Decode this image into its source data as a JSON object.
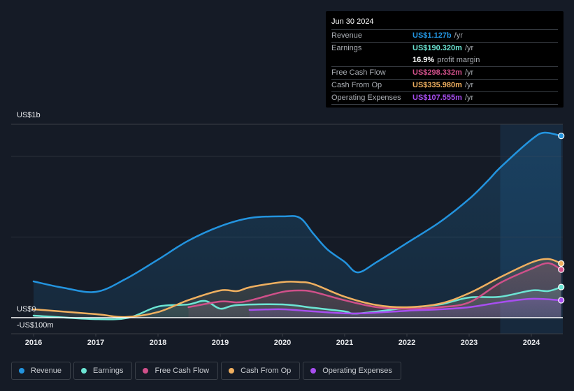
{
  "tooltip": {
    "date": "Jun 30 2024",
    "rows": [
      {
        "label": "Revenue",
        "value": "US$1.127b",
        "unit": "/yr",
        "color": "#2394df"
      },
      {
        "label": "Earnings",
        "value": "US$190.320m",
        "unit": "/yr",
        "color": "#6ce5d4"
      },
      {
        "label": "",
        "value": "16.9%",
        "unit": "profit margin"
      },
      {
        "label": "Free Cash Flow",
        "value": "US$298.332m",
        "unit": "/yr",
        "color": "#d0508a"
      },
      {
        "label": "Cash From Op",
        "value": "US$335.980m",
        "unit": "/yr",
        "color": "#f0b060"
      },
      {
        "label": "Operating Expenses",
        "value": "US$107.555m",
        "unit": "/yr",
        "color": "#a84ef0"
      }
    ]
  },
  "legend": [
    {
      "label": "Revenue",
      "color": "#2394df"
    },
    {
      "label": "Earnings",
      "color": "#6ce5d4"
    },
    {
      "label": "Free Cash Flow",
      "color": "#d0508a"
    },
    {
      "label": "Cash From Op",
      "color": "#f0b060"
    },
    {
      "label": "Operating Expenses",
      "color": "#a84ef0"
    }
  ],
  "chart_data": {
    "type": "area",
    "title": "",
    "xlabel": "",
    "ylabel": "",
    "x_ticks": [
      "2016",
      "2017",
      "2018",
      "2019",
      "2020",
      "2021",
      "2022",
      "2023",
      "2024"
    ],
    "y_ticks": [
      {
        "value": 1.0,
        "label": "US$1b"
      },
      {
        "value": 0,
        "label": "US$0"
      },
      {
        "value": -0.1,
        "label": "-US$100m"
      }
    ],
    "y_unit": "USD billions",
    "xlim": [
      2016.0,
      2024.5
    ],
    "ylim": [
      -0.1,
      1.2
    ],
    "highlight_from": 2023.5,
    "grid": true,
    "series": [
      {
        "name": "Revenue",
        "color": "#2394df",
        "points": [
          [
            2016.0,
            0.225
          ],
          [
            2016.47,
            0.186
          ],
          [
            2017.0,
            0.16
          ],
          [
            2017.47,
            0.238
          ],
          [
            2018.0,
            0.36
          ],
          [
            2018.48,
            0.476
          ],
          [
            2019.0,
            0.567
          ],
          [
            2019.49,
            0.619
          ],
          [
            2020.0,
            0.628
          ],
          [
            2020.28,
            0.619
          ],
          [
            2020.5,
            0.519
          ],
          [
            2020.72,
            0.424
          ],
          [
            2021.0,
            0.346
          ],
          [
            2021.21,
            0.281
          ],
          [
            2021.52,
            0.346
          ],
          [
            2022.0,
            0.463
          ],
          [
            2022.53,
            0.593
          ],
          [
            2023.0,
            0.736
          ],
          [
            2023.31,
            0.853
          ],
          [
            2023.5,
            0.931
          ],
          [
            2024.0,
            1.104
          ],
          [
            2024.21,
            1.147
          ],
          [
            2024.48,
            1.127
          ]
        ]
      },
      {
        "name": "Earnings",
        "color": "#6ce5d4",
        "points": [
          [
            2016.0,
            0.013
          ],
          [
            2017.0,
            -0.009
          ],
          [
            2017.53,
            0.0
          ],
          [
            2018.0,
            0.069
          ],
          [
            2018.48,
            0.082
          ],
          [
            2018.76,
            0.104
          ],
          [
            2019.0,
            0.056
          ],
          [
            2019.27,
            0.078
          ],
          [
            2020.0,
            0.082
          ],
          [
            2020.5,
            0.061
          ],
          [
            2021.0,
            0.039
          ],
          [
            2021.21,
            0.026
          ],
          [
            2022.0,
            0.061
          ],
          [
            2022.53,
            0.082
          ],
          [
            2023.0,
            0.125
          ],
          [
            2023.5,
            0.13
          ],
          [
            2024.0,
            0.169
          ],
          [
            2024.27,
            0.165
          ],
          [
            2024.48,
            0.19
          ]
        ]
      },
      {
        "name": "Free Cash Flow",
        "color": "#d0508a",
        "points": [
          [
            2018.49,
            0.065
          ],
          [
            2019.0,
            0.1
          ],
          [
            2019.27,
            0.095
          ],
          [
            2019.49,
            0.108
          ],
          [
            2020.0,
            0.16
          ],
          [
            2020.28,
            0.169
          ],
          [
            2020.5,
            0.16
          ],
          [
            2021.0,
            0.108
          ],
          [
            2021.52,
            0.065
          ],
          [
            2022.0,
            0.056
          ],
          [
            2022.53,
            0.065
          ],
          [
            2023.0,
            0.095
          ],
          [
            2023.5,
            0.216
          ],
          [
            2024.0,
            0.303
          ],
          [
            2024.27,
            0.338
          ],
          [
            2024.48,
            0.298
          ]
        ]
      },
      {
        "name": "Cash From Op",
        "color": "#f0b060",
        "points": [
          [
            2016.0,
            0.052
          ],
          [
            2017.0,
            0.022
          ],
          [
            2017.47,
            0.004
          ],
          [
            2018.0,
            0.035
          ],
          [
            2018.48,
            0.108
          ],
          [
            2019.0,
            0.169
          ],
          [
            2019.27,
            0.165
          ],
          [
            2019.49,
            0.19
          ],
          [
            2020.0,
            0.221
          ],
          [
            2020.28,
            0.221
          ],
          [
            2020.5,
            0.208
          ],
          [
            2021.0,
            0.13
          ],
          [
            2021.52,
            0.078
          ],
          [
            2022.0,
            0.065
          ],
          [
            2022.53,
            0.087
          ],
          [
            2023.0,
            0.152
          ],
          [
            2023.5,
            0.251
          ],
          [
            2024.0,
            0.342
          ],
          [
            2024.27,
            0.364
          ],
          [
            2024.48,
            0.336
          ]
        ]
      },
      {
        "name": "Operating Expenses",
        "color": "#a84ef0",
        "points": [
          [
            2019.47,
            0.048
          ],
          [
            2020.0,
            0.052
          ],
          [
            2020.5,
            0.039
          ],
          [
            2021.17,
            0.026
          ],
          [
            2022.0,
            0.043
          ],
          [
            2022.53,
            0.052
          ],
          [
            2023.0,
            0.065
          ],
          [
            2023.5,
            0.095
          ],
          [
            2024.0,
            0.117
          ],
          [
            2024.48,
            0.108
          ]
        ]
      }
    ]
  }
}
